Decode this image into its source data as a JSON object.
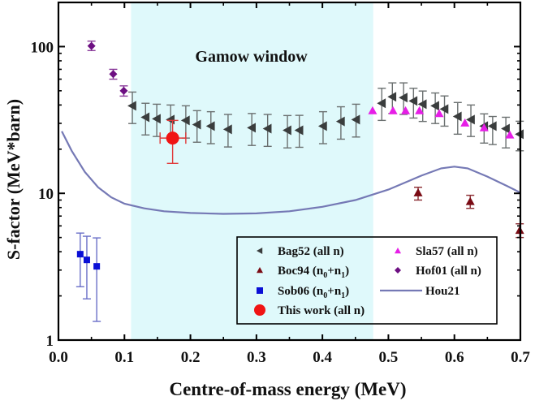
{
  "chart_data": {
    "type": "scatter",
    "title": "",
    "xlabel": "Centre-of-mass energy (MeV)",
    "ylabel": "S-factor (MeV*barn)",
    "xlim": [
      0.0,
      0.7
    ],
    "ylim": [
      1,
      200
    ],
    "yscale": "log",
    "x_ticks": [
      "0.0",
      "0.1",
      "0.2",
      "0.3",
      "0.4",
      "0.5",
      "0.6",
      "0.7"
    ],
    "x_tick_values": [
      0.0,
      0.1,
      0.2,
      0.3,
      0.4,
      0.5,
      0.6,
      0.7
    ],
    "y_ticks": [
      "1",
      "10",
      "100"
    ],
    "y_tick_values": [
      1,
      10,
      100
    ],
    "grid": false,
    "legend_position": "bottom-right",
    "annotation": {
      "text": "Gamow window",
      "region": [
        0.11,
        0.477
      ],
      "color": "#dff9fb"
    },
    "series": [
      {
        "name": "Bag52 (all n)",
        "legend_main": "Bag52 (all n)",
        "marker": "triangle-left",
        "color": "#3a3d3d",
        "errcolor": "#6b7070",
        "points": [
          {
            "x": 0.112,
            "y": 39.5,
            "ylo": 29.9,
            "yhi": 49.0
          },
          {
            "x": 0.132,
            "y": 33.0,
            "ylo": 25.0,
            "yhi": 41.1
          },
          {
            "x": 0.149,
            "y": 32.2,
            "ylo": 24.4,
            "yhi": 40.5
          },
          {
            "x": 0.17,
            "y": 31.8,
            "ylo": 24.2,
            "yhi": 40.0
          },
          {
            "x": 0.193,
            "y": 31.4,
            "ylo": 23.8,
            "yhi": 39.5
          },
          {
            "x": 0.21,
            "y": 29.4,
            "ylo": 22.3,
            "yhi": 36.6
          },
          {
            "x": 0.231,
            "y": 28.7,
            "ylo": 21.8,
            "yhi": 36.0
          },
          {
            "x": 0.257,
            "y": 27.3,
            "ylo": 20.7,
            "yhi": 34.5
          },
          {
            "x": 0.293,
            "y": 28.0,
            "ylo": 21.2,
            "yhi": 35.0
          },
          {
            "x": 0.317,
            "y": 27.6,
            "ylo": 20.9,
            "yhi": 34.5
          },
          {
            "x": 0.347,
            "y": 26.9,
            "ylo": 20.4,
            "yhi": 33.9
          },
          {
            "x": 0.365,
            "y": 26.9,
            "ylo": 20.6,
            "yhi": 34.0
          },
          {
            "x": 0.401,
            "y": 28.7,
            "ylo": 21.8,
            "yhi": 36.0
          },
          {
            "x": 0.428,
            "y": 30.9,
            "ylo": 23.4,
            "yhi": 38.9
          },
          {
            "x": 0.451,
            "y": 31.8,
            "ylo": 24.2,
            "yhi": 40.5
          },
          {
            "x": 0.49,
            "y": 41.1,
            "ylo": 31.4,
            "yhi": 52.0
          },
          {
            "x": 0.506,
            "y": 45.5,
            "ylo": 35.0,
            "yhi": 56.6
          },
          {
            "x": 0.523,
            "y": 44.9,
            "ylo": 34.5,
            "yhi": 56.6
          },
          {
            "x": 0.538,
            "y": 42.6,
            "ylo": 32.6,
            "yhi": 52.0
          },
          {
            "x": 0.552,
            "y": 40.5,
            "ylo": 30.9,
            "yhi": 49.8
          },
          {
            "x": 0.571,
            "y": 39.5,
            "ylo": 29.9,
            "yhi": 48.3
          },
          {
            "x": 0.585,
            "y": 37.5,
            "ylo": 28.7,
            "yhi": 46.1
          },
          {
            "x": 0.605,
            "y": 33.4,
            "ylo": 25.3,
            "yhi": 41.6
          },
          {
            "x": 0.625,
            "y": 31.8,
            "ylo": 24.4,
            "yhi": 40.0
          },
          {
            "x": 0.645,
            "y": 28.7,
            "ylo": 22.0,
            "yhi": 34.8
          },
          {
            "x": 0.658,
            "y": 28.7,
            "ylo": 21.5,
            "yhi": 33.4
          },
          {
            "x": 0.678,
            "y": 27.6,
            "ylo": 20.4,
            "yhi": 33.0
          },
          {
            "x": 0.699,
            "y": 25.3,
            "ylo": 19.5,
            "yhi": 31.0
          }
        ]
      },
      {
        "name": "Boc94 (n0+n1)",
        "legend_main": "Boc94 (n",
        "legend_sub1": "0",
        "legend_mid": "+n",
        "legend_sub2": "1",
        "legend_end": ")",
        "marker": "triangle-up",
        "color": "#7a0b14",
        "errcolor": "#8a2a30",
        "points": [
          {
            "x": 0.545,
            "y": 10.1,
            "ylo": 9.0,
            "yhi": 11.0
          },
          {
            "x": 0.624,
            "y": 8.8,
            "ylo": 7.9,
            "yhi": 9.7
          },
          {
            "x": 0.699,
            "y": 5.6,
            "ylo": 5.0,
            "yhi": 6.2
          }
        ]
      },
      {
        "name": "Sob06 (n0+n1)",
        "legend_main": "Sob06 (n",
        "legend_sub1": "0",
        "legend_mid": "+n",
        "legend_sub2": "1",
        "legend_end": ")",
        "marker": "square",
        "color": "#0a0fd6",
        "errcolor": "#6a6fc8",
        "points": [
          {
            "x": 0.033,
            "y": 3.85,
            "ylo": 2.31,
            "yhi": 5.36
          },
          {
            "x": 0.043,
            "y": 3.52,
            "ylo": 1.91,
            "yhi": 5.1
          },
          {
            "x": 0.058,
            "y": 3.18,
            "ylo": 1.34,
            "yhi": 4.97
          }
        ]
      },
      {
        "name": "This work (all n)",
        "legend_main": "This work (all n)",
        "marker": "circle",
        "color": "#f01414",
        "errcolor": "#e03a3a",
        "points": [
          {
            "x": 0.173,
            "y": 23.8,
            "ylo": 16.0,
            "yhi": 31.4,
            "xlo": 0.154,
            "xhi": 0.193
          }
        ]
      },
      {
        "name": "Sla57 (all n)",
        "legend_main": "Sla57 (all n)",
        "marker": "triangle-up",
        "color": "#e61ee6",
        "points": [
          {
            "x": 0.476,
            "y": 36.6
          },
          {
            "x": 0.507,
            "y": 36.6
          },
          {
            "x": 0.526,
            "y": 36.6
          },
          {
            "x": 0.547,
            "y": 36.6
          },
          {
            "x": 0.577,
            "y": 35.0
          },
          {
            "x": 0.616,
            "y": 30.2
          },
          {
            "x": 0.645,
            "y": 28.0
          },
          {
            "x": 0.684,
            "y": 25.0
          }
        ]
      },
      {
        "name": "Hof01 (all n)",
        "legend_main": "Hof01 (all n)",
        "marker": "diamond",
        "color": "#6d0f82",
        "errcolor": "#8a3a9a",
        "points": [
          {
            "x": 0.05,
            "y": 101,
            "ylo": 94,
            "yhi": 109
          },
          {
            "x": 0.083,
            "y": 65,
            "ylo": 60,
            "yhi": 70
          },
          {
            "x": 0.099,
            "y": 50,
            "ylo": 46,
            "yhi": 54
          }
        ]
      },
      {
        "name": "Hou21",
        "legend_main": "Hou21",
        "marker": "line",
        "color": "#7579b5",
        "points": [
          {
            "x": 0.005,
            "y": 26.5
          },
          {
            "x": 0.02,
            "y": 19.5
          },
          {
            "x": 0.04,
            "y": 14.0
          },
          {
            "x": 0.06,
            "y": 11.0
          },
          {
            "x": 0.08,
            "y": 9.4
          },
          {
            "x": 0.1,
            "y": 8.5
          },
          {
            "x": 0.13,
            "y": 7.9
          },
          {
            "x": 0.16,
            "y": 7.55
          },
          {
            "x": 0.2,
            "y": 7.35
          },
          {
            "x": 0.25,
            "y": 7.25
          },
          {
            "x": 0.3,
            "y": 7.3
          },
          {
            "x": 0.35,
            "y": 7.55
          },
          {
            "x": 0.4,
            "y": 8.1
          },
          {
            "x": 0.45,
            "y": 9.0
          },
          {
            "x": 0.5,
            "y": 10.6
          },
          {
            "x": 0.55,
            "y": 13.2
          },
          {
            "x": 0.58,
            "y": 14.8
          },
          {
            "x": 0.6,
            "y": 15.2
          },
          {
            "x": 0.62,
            "y": 14.8
          },
          {
            "x": 0.65,
            "y": 13.0
          },
          {
            "x": 0.68,
            "y": 11.2
          },
          {
            "x": 0.7,
            "y": 10.1
          }
        ]
      }
    ],
    "legend_order": [
      [
        "Bag52 (all n)",
        "Sla57 (all n)"
      ],
      [
        "Boc94 (n0+n1)",
        "Hof01 (all n)"
      ],
      [
        "Sob06 (n0+n1)",
        "Hou21"
      ],
      [
        "This work (all n)"
      ]
    ]
  }
}
